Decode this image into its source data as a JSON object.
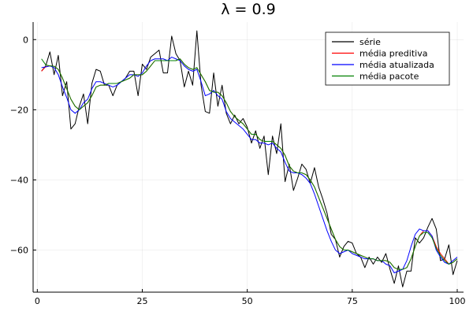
{
  "chart_data": {
    "type": "line",
    "title": "λ = 0.9",
    "xlabel": "",
    "ylabel": "",
    "xlim": [
      -1,
      101.5
    ],
    "ylim": [
      -72,
      5
    ],
    "xticks": [
      0,
      25,
      50,
      75,
      100
    ],
    "yticks": [
      0,
      -20,
      -40,
      -60
    ],
    "grid": true,
    "legend": "top-right",
    "series": [
      {
        "name": "série",
        "color": "#000000",
        "x": [
          1,
          2,
          3,
          4,
          5,
          6,
          7,
          8,
          9,
          10,
          11,
          12,
          13,
          14,
          15,
          16,
          17,
          18,
          19,
          20,
          21,
          22,
          23,
          24,
          25,
          26,
          27,
          28,
          29,
          30,
          31,
          32,
          33,
          34,
          35,
          36,
          37,
          38,
          39,
          40,
          41,
          42,
          43,
          44,
          45,
          46,
          47,
          48,
          49,
          50,
          51,
          52,
          53,
          54,
          55,
          56,
          57,
          58,
          59,
          60,
          61,
          62,
          63,
          64,
          65,
          66,
          67,
          68,
          69,
          70,
          71,
          72,
          73,
          74,
          75,
          76,
          77,
          78,
          79,
          80,
          81,
          82,
          83,
          84,
          85,
          86,
          87,
          88,
          89,
          90,
          91,
          92,
          93,
          94,
          95,
          96,
          97,
          98,
          99,
          100
        ],
        "y": [
          -9,
          -7.5,
          -3.5,
          -10,
          -4.5,
          -16,
          -12,
          -25.5,
          -24,
          -19,
          -15.5,
          -24,
          -12.5,
          -8.5,
          -9,
          -13,
          -13,
          -16,
          -13,
          -12,
          -11,
          -9,
          -9,
          -16,
          -7,
          -8.5,
          -5,
          -4,
          -3,
          -9.5,
          -9.5,
          1,
          -4,
          -6,
          -13.5,
          -9,
          -13,
          2.5,
          -13,
          -20.5,
          -21,
          -9.5,
          -19,
          -13,
          -21,
          -24,
          -21.5,
          -24,
          -22.5,
          -25,
          -29.5,
          -26,
          -31,
          -27.5,
          -38.5,
          -27.5,
          -32.5,
          -24,
          -40.5,
          -35.5,
          -43,
          -39.5,
          -35.5,
          -37,
          -41,
          -36.5,
          -42,
          -45.5,
          -49.5,
          -55.5,
          -57,
          -62,
          -59,
          -57.5,
          -58,
          -61,
          -62,
          -65,
          -62,
          -64,
          -62,
          -63.5,
          -61,
          -65.5,
          -69.5,
          -64.5,
          -70.5,
          -66,
          -66,
          -56.5,
          -58,
          -56.5,
          -53.5,
          -51,
          -54,
          -63,
          -62.5,
          -58.5,
          -67,
          -63
        ]
      },
      {
        "name": "média preditiva",
        "color": "#ff0000",
        "x": [
          1,
          2,
          3,
          4,
          5,
          6,
          7,
          8,
          9,
          10,
          11,
          12,
          13,
          14,
          15,
          16,
          17,
          18,
          19,
          20,
          21,
          22,
          23,
          24,
          25,
          26,
          27,
          28,
          29,
          30,
          31,
          32,
          33,
          34,
          35,
          36,
          37,
          38,
          39,
          40,
          41,
          42,
          43,
          44,
          45,
          46,
          47,
          48,
          49,
          50,
          51,
          52,
          53,
          54,
          55,
          56,
          57,
          58,
          59,
          60,
          61,
          62,
          63,
          64,
          65,
          66,
          67,
          68,
          69,
          70,
          71,
          72,
          73,
          74,
          75,
          76,
          77,
          78,
          79,
          80,
          81,
          82,
          83,
          84,
          85,
          86,
          87,
          88,
          89,
          90,
          91,
          92,
          93,
          94,
          95,
          96,
          97,
          98,
          99,
          100
        ],
        "y": [
          -9,
          -7.7,
          -7.5,
          -7.6,
          -8.5,
          -11,
          -14,
          -17,
          -19,
          -20,
          -19,
          -18,
          -16,
          -13.5,
          -13,
          -13,
          -12.5,
          -12.5,
          -12.5,
          -12,
          -11.5,
          -11,
          -10,
          -10,
          -10,
          -9,
          -7.5,
          -6,
          -6,
          -6,
          -6,
          -6,
          -6,
          -5.5,
          -7,
          -8,
          -8.5,
          -8,
          -10,
          -12,
          -14.5,
          -15,
          -15,
          -16,
          -18,
          -20.5,
          -22,
          -23,
          -24,
          -25.5,
          -27,
          -27,
          -28.5,
          -29,
          -29,
          -29,
          -30,
          -31,
          -33,
          -36,
          -37.5,
          -38,
          -38,
          -38.5,
          -40,
          -42,
          -45,
          -48,
          -51,
          -54,
          -57,
          -59,
          -60,
          -60,
          -60.5,
          -61,
          -61.5,
          -62,
          -62.5,
          -62.5,
          -63,
          -63,
          -63,
          -63.5,
          -65,
          -65.5,
          -65.5,
          -65,
          -62.5,
          -59,
          -56,
          -54.5,
          -54.5,
          -56,
          -59,
          -61,
          -62.5,
          -64,
          -63.5,
          -62.5
        ]
      },
      {
        "name": "média atualizada",
        "color": "#0000ff",
        "x": [
          1,
          2,
          3,
          4,
          5,
          6,
          7,
          8,
          9,
          10,
          11,
          12,
          13,
          14,
          15,
          16,
          17,
          18,
          19,
          20,
          21,
          22,
          23,
          24,
          25,
          26,
          27,
          28,
          29,
          30,
          31,
          32,
          33,
          34,
          35,
          36,
          37,
          38,
          39,
          40,
          41,
          42,
          43,
          44,
          45,
          46,
          47,
          48,
          49,
          50,
          51,
          52,
          53,
          54,
          55,
          56,
          57,
          58,
          59,
          60,
          61,
          62,
          63,
          64,
          65,
          66,
          67,
          68,
          69,
          70,
          71,
          72,
          73,
          74,
          75,
          76,
          77,
          78,
          79,
          80,
          81,
          82,
          83,
          84,
          85,
          86,
          87,
          88,
          89,
          90,
          91,
          92,
          93,
          94,
          95,
          96,
          97,
          98,
          99,
          100
        ],
        "y": [
          -8,
          -7.8,
          -7.5,
          -8,
          -10,
          -13.5,
          -16.5,
          -20,
          -21,
          -20,
          -18,
          -17,
          -14,
          -12,
          -12,
          -12.5,
          -13,
          -13.5,
          -13,
          -12,
          -11,
          -10,
          -10,
          -10.5,
          -9.5,
          -7.5,
          -6,
          -5.5,
          -5.5,
          -5.5,
          -6,
          -5,
          -5.5,
          -6,
          -7.5,
          -8.5,
          -9,
          -8.5,
          -12,
          -16,
          -15.5,
          -14.5,
          -16,
          -17,
          -20.5,
          -22.5,
          -23.5,
          -24.5,
          -25.5,
          -27,
          -28.5,
          -28.5,
          -29.5,
          -29.5,
          -30,
          -29.5,
          -31,
          -32,
          -35,
          -37.5,
          -38,
          -38,
          -38.5,
          -39.5,
          -41,
          -44,
          -47.5,
          -51,
          -54.5,
          -57.5,
          -60,
          -61,
          -60.5,
          -60,
          -61,
          -61.5,
          -62,
          -62.5,
          -62.5,
          -62.5,
          -63,
          -63,
          -64,
          -64.5,
          -66.5,
          -66,
          -65.5,
          -63,
          -59,
          -55.5,
          -54,
          -54.5,
          -54.5,
          -56,
          -60,
          -62,
          -63.5,
          -64,
          -63,
          -62
        ]
      },
      {
        "name": "média pacote",
        "color": "#008000",
        "x": [
          1,
          2,
          3,
          4,
          5,
          6,
          7,
          8,
          9,
          10,
          11,
          12,
          13,
          14,
          15,
          16,
          17,
          18,
          19,
          20,
          21,
          22,
          23,
          24,
          25,
          26,
          27,
          28,
          29,
          30,
          31,
          32,
          33,
          34,
          35,
          36,
          37,
          38,
          39,
          40,
          41,
          42,
          43,
          44,
          45,
          46,
          47,
          48,
          49,
          50,
          51,
          52,
          53,
          54,
          55,
          56,
          57,
          58,
          59,
          60,
          61,
          62,
          63,
          64,
          65,
          66,
          67,
          68,
          69,
          70,
          71,
          72,
          73,
          74,
          75,
          76,
          77,
          78,
          79,
          80,
          81,
          82,
          83,
          84,
          85,
          86,
          87,
          88,
          89,
          90,
          91,
          92,
          93,
          94,
          95,
          96,
          97,
          98,
          99,
          100
        ],
        "y": [
          -5.5,
          -7.2,
          -7.5,
          -7.6,
          -8.5,
          -11,
          -14,
          -17,
          -19,
          -20,
          -19,
          -18,
          -16,
          -13.5,
          -13,
          -13,
          -12.5,
          -12.5,
          -12.5,
          -12,
          -11.5,
          -11,
          -10,
          -10,
          -10,
          -9,
          -7.5,
          -6,
          -6,
          -6,
          -6,
          -6,
          -6,
          -5.5,
          -7,
          -8,
          -8.5,
          -8,
          -10,
          -12,
          -14.5,
          -15,
          -15,
          -16,
          -18,
          -20.5,
          -22,
          -23,
          -24,
          -25.5,
          -27,
          -27,
          -28.5,
          -29,
          -29,
          -29,
          -30,
          -31,
          -33,
          -36,
          -37.5,
          -38,
          -38,
          -38.5,
          -40,
          -42,
          -45,
          -48,
          -51,
          -54,
          -57,
          -59,
          -60,
          -60,
          -60.5,
          -61,
          -61.5,
          -62,
          -62.5,
          -62.5,
          -63,
          -63,
          -63,
          -63.5,
          -65,
          -65.5,
          -65.5,
          -65,
          -62.5,
          -59,
          -56,
          -55,
          -55,
          -56.5,
          -59.5,
          -61.5,
          -63,
          -64,
          -63.5,
          -62.5
        ]
      }
    ]
  }
}
